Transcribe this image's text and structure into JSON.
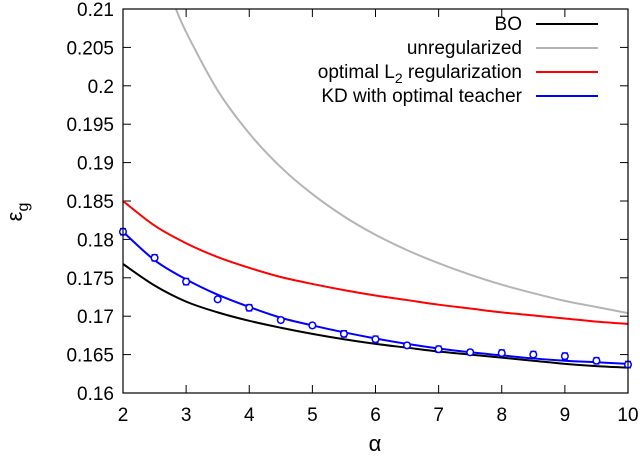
{
  "chart_data": {
    "type": "line",
    "title": "",
    "xlabel": "α",
    "ylabel_main": "ε",
    "ylabel_sub": "g",
    "xlim": [
      2,
      10
    ],
    "ylim": [
      0.16,
      0.21
    ],
    "xticks": [
      2,
      3,
      4,
      5,
      6,
      7,
      8,
      9,
      10
    ],
    "yticks": [
      0.16,
      0.165,
      0.17,
      0.175,
      0.18,
      0.185,
      0.19,
      0.195,
      0.2,
      0.205,
      0.21
    ],
    "grid": false,
    "legend_position": "top-right",
    "series": [
      {
        "name": "BO",
        "color": "#000000",
        "x": [
          2,
          2.5,
          3,
          3.5,
          4,
          4.5,
          5,
          5.5,
          6,
          6.5,
          7,
          7.5,
          8,
          8.5,
          9,
          9.5,
          10
        ],
        "y": [
          0.1768,
          0.174,
          0.1719,
          0.1705,
          0.1694,
          0.1685,
          0.1677,
          0.167,
          0.1664,
          0.1659,
          0.1654,
          0.165,
          0.1646,
          0.1642,
          0.1638,
          0.1635,
          0.1633
        ]
      },
      {
        "name": "unregularized",
        "color": "#b4b4b4",
        "x": [
          2.8,
          3,
          3.5,
          4,
          4.5,
          5,
          5.5,
          6,
          6.5,
          7,
          7.5,
          8,
          8.5,
          9,
          9.5,
          10
        ],
        "y": [
          0.2108,
          0.207,
          0.1994,
          0.1938,
          0.1894,
          0.1859,
          0.183,
          0.1806,
          0.1786,
          0.1769,
          0.1754,
          0.1741,
          0.173,
          0.172,
          0.1712,
          0.1704
        ]
      },
      {
        "name": "optimal L2 regularization",
        "name_main": "optimal L",
        "name_sub": "2",
        "name_rest": " regularization",
        "color": "#ff0000",
        "x": [
          2,
          2.5,
          3,
          3.5,
          4,
          4.5,
          5,
          5.5,
          6,
          6.5,
          7,
          7.5,
          8,
          8.5,
          9,
          9.5,
          10
        ],
        "y": [
          0.185,
          0.1818,
          0.1795,
          0.1777,
          0.1763,
          0.1751,
          0.1742,
          0.1734,
          0.1727,
          0.1721,
          0.1715,
          0.171,
          0.1705,
          0.1701,
          0.1697,
          0.1693,
          0.169
        ]
      },
      {
        "name": "KD with optimal teacher",
        "color": "#0000ff",
        "x": [
          2,
          2.5,
          3,
          3.5,
          4,
          4.5,
          5,
          5.5,
          6,
          6.5,
          7,
          7.5,
          8,
          8.5,
          9,
          9.5,
          10
        ],
        "y": [
          0.181,
          0.1773,
          0.1748,
          0.1728,
          0.1712,
          0.1698,
          0.1688,
          0.1679,
          0.1671,
          0.1664,
          0.1658,
          0.1653,
          0.1649,
          0.1645,
          0.1642,
          0.164,
          0.1638
        ]
      }
    ],
    "markers": {
      "series": "KD with optimal teacher",
      "color": "#0000ff",
      "x": [
        2,
        2.5,
        3,
        3.5,
        4,
        4.5,
        5,
        5.5,
        6,
        6.5,
        7,
        7.5,
        8,
        8.5,
        9,
        9.5,
        10
      ],
      "y": [
        0.181,
        0.1776,
        0.1745,
        0.1722,
        0.1711,
        0.1695,
        0.1688,
        0.1677,
        0.167,
        0.1662,
        0.1657,
        0.1653,
        0.1652,
        0.165,
        0.1648,
        0.1642,
        0.1637
      ],
      "err": [
        0.0004,
        0.0004,
        0.0004,
        0.0003,
        0.0004,
        0.0003,
        0.0003,
        0.0004,
        0.0004,
        0.0003,
        0.0004,
        0.0003,
        0.0004,
        0.0004,
        0.0004,
        0.0004,
        0.0004
      ]
    }
  }
}
